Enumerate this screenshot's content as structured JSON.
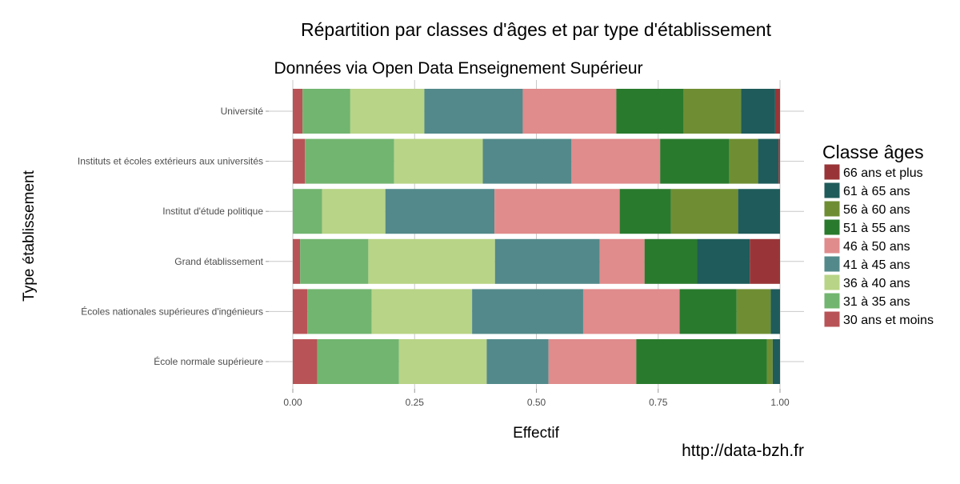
{
  "chart_data": {
    "type": "bar",
    "orientation": "horizontal",
    "stacked": true,
    "title": "Répartition par classes d'âges et par type d'établissement",
    "subtitle": "Données via Open Data Enseignement Supérieur",
    "xlabel": "Effectif",
    "ylabel": "Type établissement",
    "xlim": [
      0,
      1
    ],
    "x_ticks": [
      "0.00",
      "0.25",
      "0.50",
      "0.75",
      "1.00"
    ],
    "grid": true,
    "legend_title": "Classe âges",
    "legend_position": "right",
    "caption": "http://data-bzh.fr",
    "categories": [
      "Université",
      "Instituts et écoles extérieurs aux universités",
      "Institut d'étude politique",
      "Grand établissement",
      "Écoles nationales supérieures d'ingénieurs",
      "École normale supérieure"
    ],
    "series": [
      {
        "name": "30 ans et moins",
        "color": "#b85457",
        "values": [
          0.02,
          0.025,
          0.0,
          0.015,
          0.03,
          0.05
        ]
      },
      {
        "name": "31 à 35 ans",
        "color": "#72b570",
        "values": [
          0.098,
          0.183,
          0.06,
          0.14,
          0.132,
          0.168
        ]
      },
      {
        "name": "36 à 40 ans",
        "color": "#b8d486",
        "values": [
          0.152,
          0.182,
          0.13,
          0.26,
          0.206,
          0.18
        ]
      },
      {
        "name": "41 à 45 ans",
        "color": "#53898a",
        "values": [
          0.202,
          0.182,
          0.224,
          0.215,
          0.228,
          0.127
        ]
      },
      {
        "name": "46 à 50 ans",
        "color": "#e08b8c",
        "values": [
          0.192,
          0.182,
          0.257,
          0.092,
          0.198,
          0.18
        ]
      },
      {
        "name": "51 à 55 ans",
        "color": "#2a7a2d",
        "values": [
          0.138,
          0.142,
          0.105,
          0.108,
          0.117,
          0.268
        ]
      },
      {
        "name": "56 à 60 ans",
        "color": "#6f8e33",
        "values": [
          0.118,
          0.059,
          0.138,
          0.0,
          0.07,
          0.012
        ]
      },
      {
        "name": "61 à 65 ans",
        "color": "#1f5b5b",
        "values": [
          0.07,
          0.042,
          0.086,
          0.108,
          0.019,
          0.015
        ]
      },
      {
        "name": "66 ans et plus",
        "color": "#993538",
        "values": [
          0.01,
          0.003,
          0.0,
          0.062,
          0.0,
          0.0
        ]
      }
    ]
  }
}
